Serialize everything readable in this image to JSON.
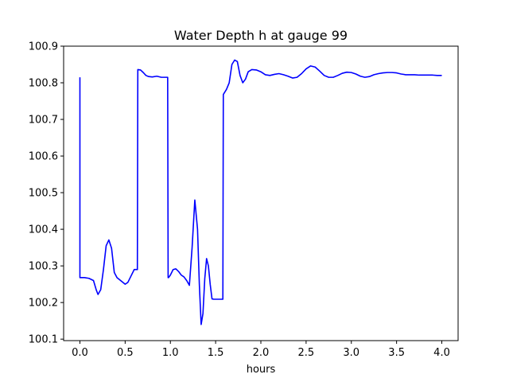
{
  "chart_data": {
    "type": "line",
    "title": "Water Depth h at gauge 99",
    "xlabel": "hours",
    "ylabel": "",
    "xlim": [
      -0.18,
      4.18
    ],
    "ylim": [
      100.096,
      100.9
    ],
    "xticks": [
      0.0,
      0.5,
      1.0,
      1.5,
      2.0,
      2.5,
      3.0,
      3.5,
      4.0
    ],
    "xtick_labels": [
      "0.0",
      "0.5",
      "1.0",
      "1.5",
      "2.0",
      "2.5",
      "3.0",
      "3.5",
      "4.0"
    ],
    "yticks": [
      100.1,
      100.2,
      100.3,
      100.4,
      100.5,
      100.6,
      100.7,
      100.8,
      100.9
    ],
    "ytick_labels": [
      "100.1",
      "100.2",
      "100.3",
      "100.4",
      "100.5",
      "100.6",
      "100.7",
      "100.8",
      "100.9"
    ],
    "grid": false,
    "series": [
      {
        "color": "#0000ff",
        "x": [
          0.0,
          0.0,
          0.005,
          0.05,
          0.1,
          0.15,
          0.18,
          0.2,
          0.23,
          0.26,
          0.29,
          0.32,
          0.35,
          0.38,
          0.41,
          0.45,
          0.5,
          0.53,
          0.56,
          0.6,
          0.63,
          0.635,
          0.64,
          0.67,
          0.7,
          0.73,
          0.76,
          0.8,
          0.85,
          0.9,
          0.94,
          0.97,
          0.975,
          0.98,
          1.0,
          1.03,
          1.06,
          1.09,
          1.12,
          1.15,
          1.18,
          1.21,
          1.24,
          1.27,
          1.3,
          1.32,
          1.34,
          1.36,
          1.38,
          1.4,
          1.42,
          1.44,
          1.46,
          1.48,
          1.5,
          1.52,
          1.54,
          1.56,
          1.57,
          1.58,
          1.585,
          1.59,
          1.62,
          1.65,
          1.68,
          1.71,
          1.74,
          1.77,
          1.8,
          1.83,
          1.86,
          1.9,
          1.95,
          2.0,
          2.05,
          2.1,
          2.15,
          2.2,
          2.25,
          2.3,
          2.35,
          2.4,
          2.45,
          2.5,
          2.55,
          2.6,
          2.65,
          2.7,
          2.75,
          2.8,
          2.85,
          2.9,
          2.95,
          3.0,
          3.05,
          3.1,
          3.15,
          3.2,
          3.25,
          3.3,
          3.35,
          3.4,
          3.45,
          3.5,
          3.55,
          3.6,
          3.65,
          3.7,
          3.75,
          3.8,
          3.85,
          3.9,
          3.95,
          4.0
        ],
        "y": [
          100.815,
          100.268,
          100.268,
          100.268,
          100.266,
          100.26,
          100.235,
          100.222,
          100.235,
          100.29,
          100.355,
          100.371,
          100.348,
          100.282,
          100.268,
          100.26,
          100.25,
          100.255,
          100.27,
          100.29,
          100.29,
          100.29,
          100.836,
          100.835,
          100.828,
          100.82,
          100.817,
          100.816,
          100.818,
          100.815,
          100.815,
          100.815,
          100.268,
          100.268,
          100.275,
          100.29,
          100.292,
          100.285,
          100.275,
          100.27,
          100.26,
          100.247,
          100.35,
          100.48,
          100.4,
          100.25,
          100.14,
          100.17,
          100.265,
          100.32,
          100.3,
          100.25,
          100.21,
          100.209,
          100.209,
          100.209,
          100.209,
          100.209,
          100.209,
          100.209,
          100.768,
          100.77,
          100.782,
          100.8,
          100.85,
          100.862,
          100.858,
          100.82,
          100.8,
          100.81,
          100.83,
          100.836,
          100.835,
          100.83,
          100.822,
          100.82,
          100.823,
          100.825,
          100.822,
          100.818,
          100.813,
          100.815,
          100.825,
          100.838,
          100.846,
          100.843,
          100.832,
          100.82,
          100.815,
          100.815,
          100.82,
          100.826,
          100.829,
          100.828,
          100.824,
          100.818,
          100.815,
          100.817,
          100.822,
          100.825,
          100.827,
          100.828,
          100.828,
          100.827,
          100.824,
          100.822,
          100.822,
          100.822,
          100.821,
          100.821,
          100.821,
          100.821,
          100.82,
          100.82
        ]
      }
    ]
  }
}
